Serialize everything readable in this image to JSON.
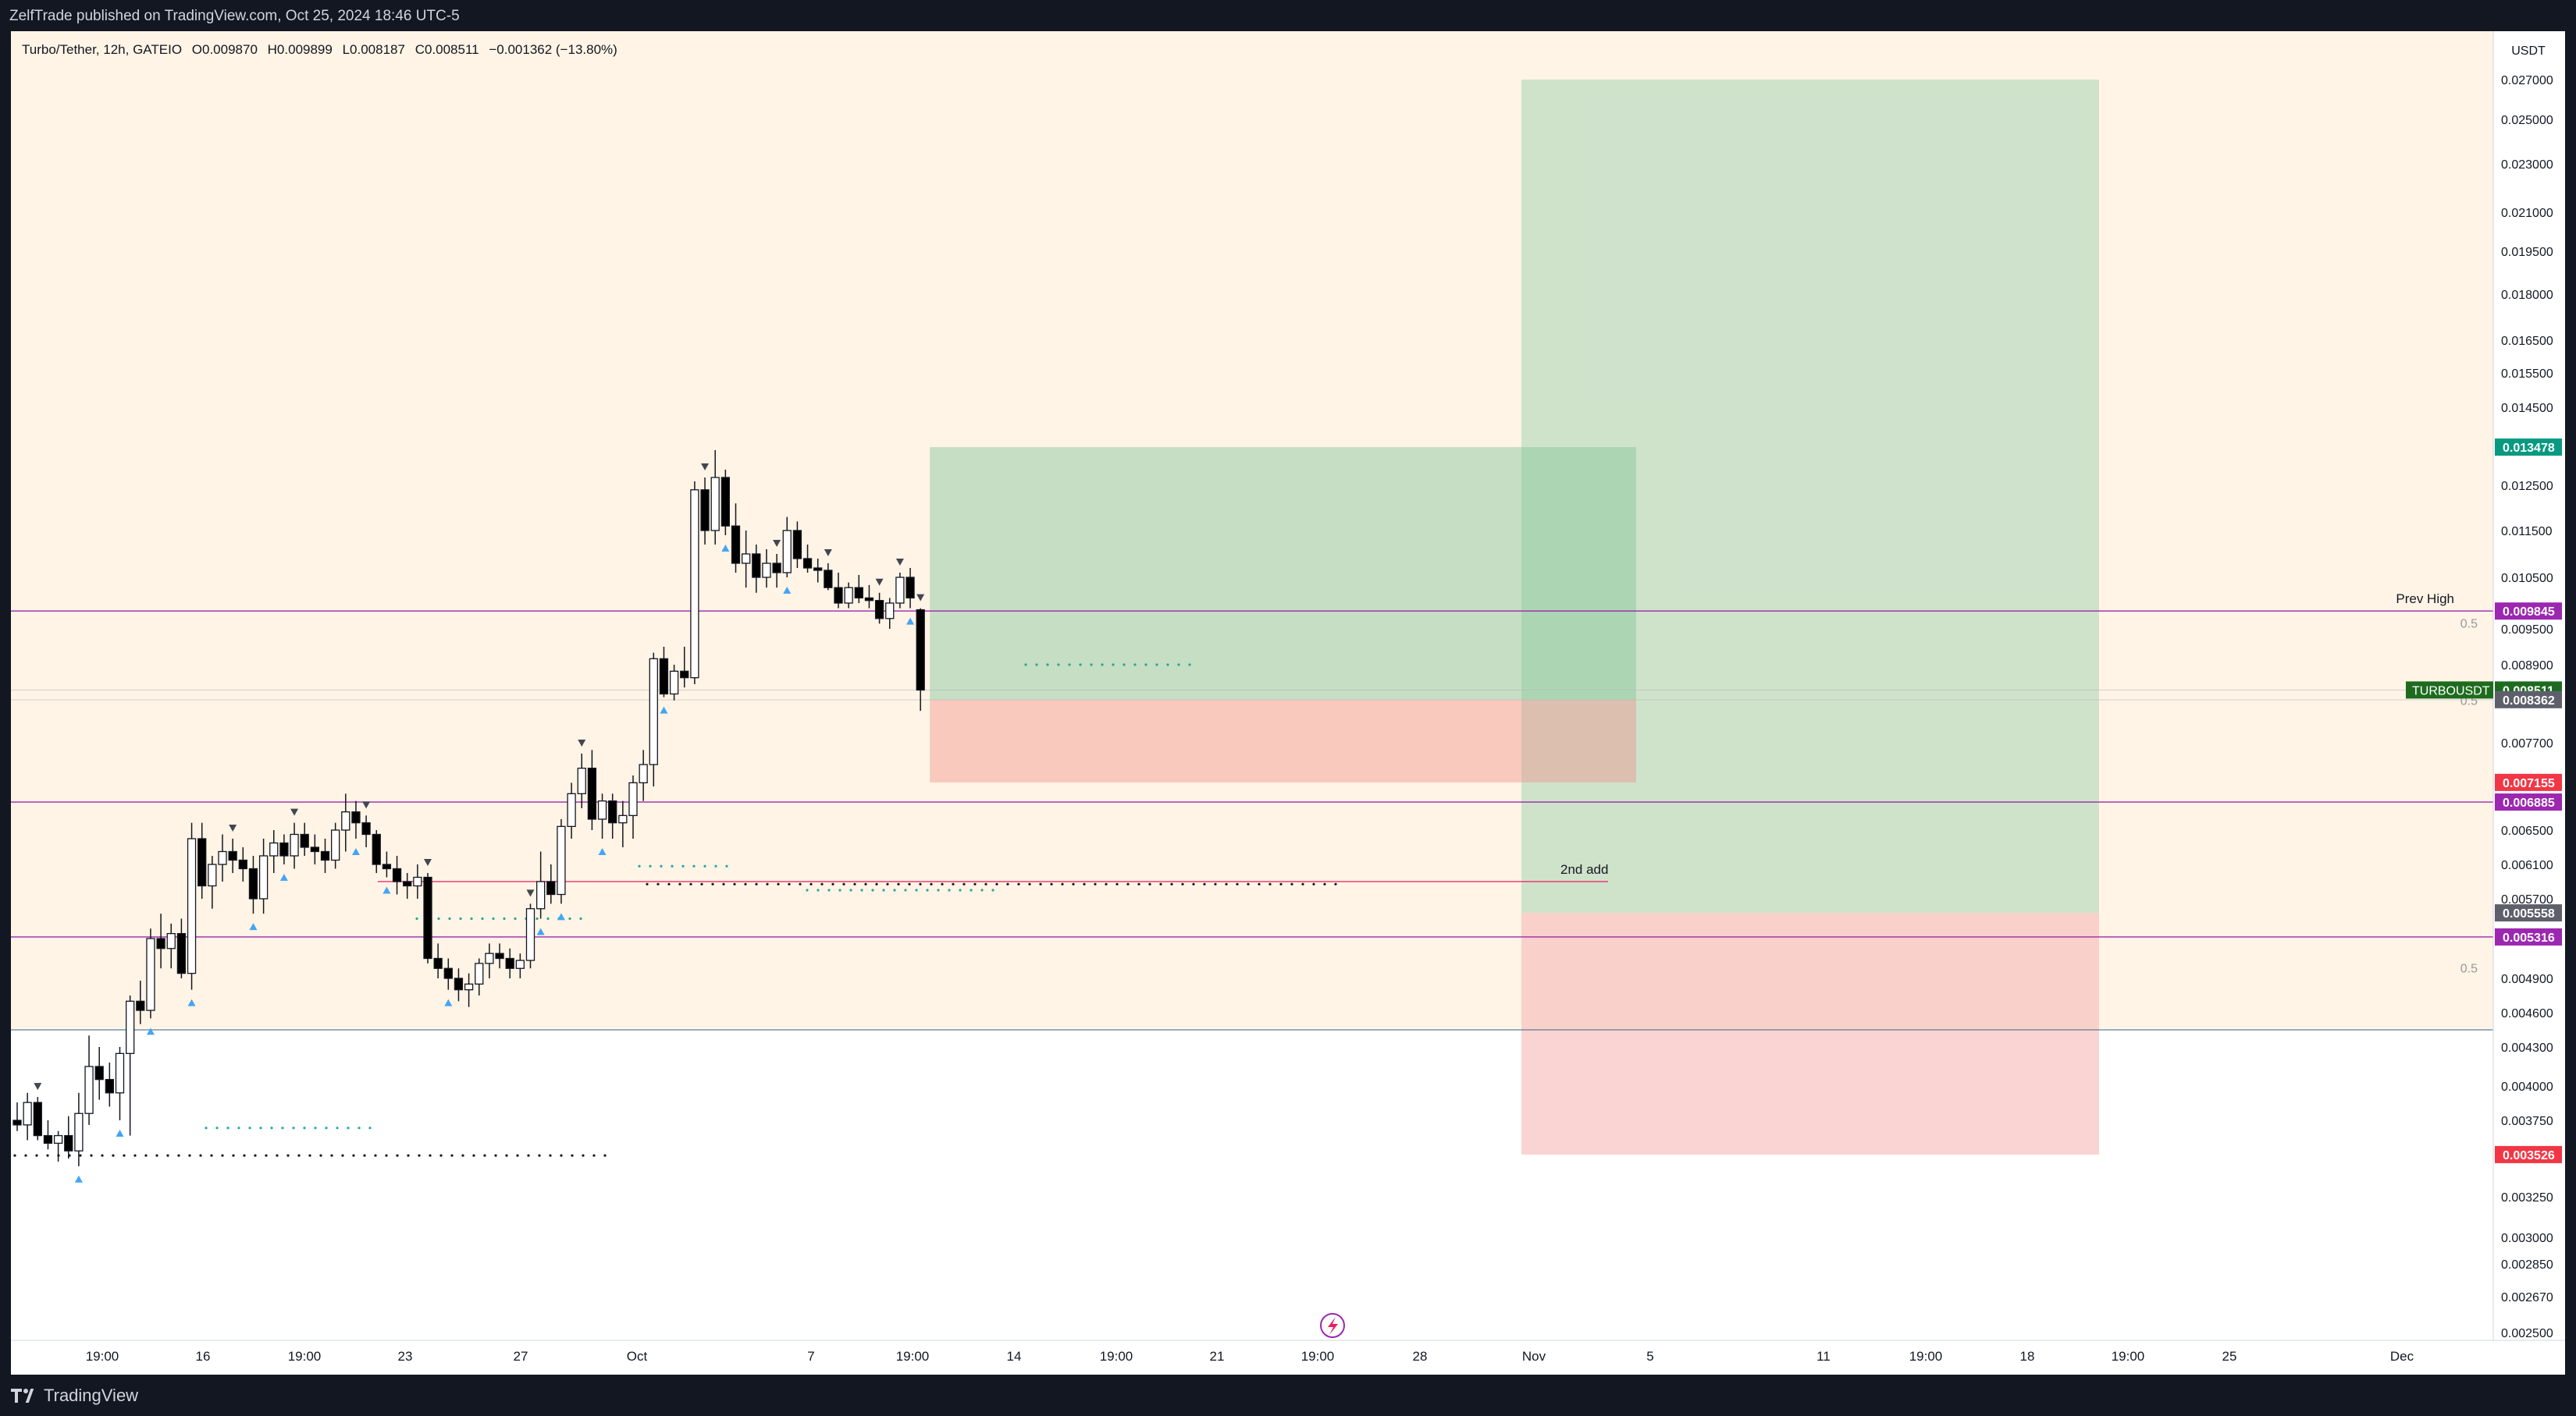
{
  "header": {
    "published": "ZelfTrade published on TradingView.com, Oct 25, 2024 18:46 UTC-5"
  },
  "footer": {
    "brand": "TradingView"
  },
  "legend": {
    "symbol": "Turbo/Tether, 12h, GATEIO",
    "open": "O0.009870",
    "high": "H0.009899",
    "low": "L0.008187",
    "close": "C0.008511",
    "change": "−0.001362 (−13.80%)"
  },
  "colors": {
    "up_candle": "#ffffff",
    "down_candle": "#000000",
    "session_bg": "#fff4e5",
    "long_target": "#b2d8bc",
    "stop_zone": "#f8c2bf",
    "price_tag": "#1e6b1f",
    "level_line": "#9c27b0",
    "signal_up": "#42a5f5"
  },
  "chart_data": {
    "type": "candlestick",
    "timeframe": "12h",
    "currency": "USDT",
    "price_axis_ticks": [
      "0.027000",
      "0.025000",
      "0.023000",
      "0.021000",
      "0.019500",
      "0.018000",
      "0.016500",
      "0.015500",
      "0.014500",
      "0.012500",
      "0.011500",
      "0.010500",
      "0.009500",
      "0.008900",
      "0.007700",
      "0.006500",
      "0.006100",
      "0.005700",
      "0.004900",
      "0.004600",
      "0.004300",
      "0.004000",
      "0.003750",
      "0.003250",
      "0.003000",
      "0.002850",
      "0.002670",
      "0.002500"
    ],
    "time_axis_ticks": [
      "19:00",
      "16",
      "19:00",
      "23",
      "27",
      "Oct",
      "7",
      "19:00",
      "14",
      "19:00",
      "21",
      "19:00",
      "28",
      "Nov",
      "5",
      "11",
      "19:00",
      "18",
      "19:00",
      "25",
      "Dec"
    ],
    "candles": [
      [
        0.00375,
        0.00388,
        0.00368,
        0.00372
      ],
      [
        0.00372,
        0.00395,
        0.00362,
        0.00388
      ],
      [
        0.00388,
        0.00392,
        0.00362,
        0.00365
      ],
      [
        0.00365,
        0.00375,
        0.00356,
        0.0036
      ],
      [
        0.0036,
        0.00368,
        0.00348,
        0.00365
      ],
      [
        0.00365,
        0.00378,
        0.0035,
        0.00355
      ],
      [
        0.00355,
        0.00395,
        0.00345,
        0.0038
      ],
      [
        0.0038,
        0.0044,
        0.00372,
        0.00415
      ],
      [
        0.00415,
        0.0043,
        0.0039,
        0.00405
      ],
      [
        0.00405,
        0.00418,
        0.00385,
        0.00395
      ],
      [
        0.00395,
        0.0043,
        0.00375,
        0.00425
      ],
      [
        0.00425,
        0.00475,
        0.00365,
        0.0047
      ],
      [
        0.0047,
        0.00488,
        0.0045,
        0.00462
      ],
      [
        0.00462,
        0.0054,
        0.00455,
        0.0053
      ],
      [
        0.0053,
        0.00555,
        0.005,
        0.0052
      ],
      [
        0.0052,
        0.00545,
        0.005,
        0.00535
      ],
      [
        0.00535,
        0.0055,
        0.0049,
        0.00495
      ],
      [
        0.00495,
        0.0066,
        0.0048,
        0.0064
      ],
      [
        0.0064,
        0.0066,
        0.0057,
        0.00585
      ],
      [
        0.00585,
        0.0062,
        0.0056,
        0.0061
      ],
      [
        0.0061,
        0.00645,
        0.0059,
        0.00625
      ],
      [
        0.00625,
        0.0064,
        0.006,
        0.00615
      ],
      [
        0.00615,
        0.0063,
        0.0059,
        0.00605
      ],
      [
        0.00605,
        0.0062,
        0.00555,
        0.0057
      ],
      [
        0.0057,
        0.0064,
        0.00555,
        0.0062
      ],
      [
        0.0062,
        0.0065,
        0.006,
        0.00635
      ],
      [
        0.00635,
        0.00645,
        0.0061,
        0.0062
      ],
      [
        0.0062,
        0.0066,
        0.00605,
        0.00645
      ],
      [
        0.00645,
        0.0066,
        0.0062,
        0.0063
      ],
      [
        0.0063,
        0.00645,
        0.0061,
        0.00625
      ],
      [
        0.00625,
        0.0064,
        0.006,
        0.00615
      ],
      [
        0.00615,
        0.0066,
        0.00605,
        0.0065
      ],
      [
        0.0065,
        0.007,
        0.00625,
        0.00675
      ],
      [
        0.00675,
        0.0069,
        0.0064,
        0.0066
      ],
      [
        0.0066,
        0.0067,
        0.0063,
        0.00645
      ],
      [
        0.00645,
        0.0065,
        0.006,
        0.0061
      ],
      [
        0.0061,
        0.00625,
        0.00595,
        0.00605
      ],
      [
        0.00605,
        0.0062,
        0.00575,
        0.0059
      ],
      [
        0.0059,
        0.006,
        0.0057,
        0.00585
      ],
      [
        0.00585,
        0.0061,
        0.0057,
        0.00595
      ],
      [
        0.00595,
        0.006,
        0.00505,
        0.0051
      ],
      [
        0.0051,
        0.00525,
        0.0049,
        0.005
      ],
      [
        0.005,
        0.0051,
        0.0048,
        0.0049
      ],
      [
        0.0049,
        0.005,
        0.0047,
        0.0048
      ],
      [
        0.0048,
        0.00495,
        0.00465,
        0.00485
      ],
      [
        0.00485,
        0.0051,
        0.00475,
        0.00505
      ],
      [
        0.00505,
        0.00525,
        0.0049,
        0.00515
      ],
      [
        0.00515,
        0.00525,
        0.005,
        0.0051
      ],
      [
        0.0051,
        0.0052,
        0.0049,
        0.005
      ],
      [
        0.005,
        0.00515,
        0.0049,
        0.00508
      ],
      [
        0.00508,
        0.00565,
        0.005,
        0.0056
      ],
      [
        0.0056,
        0.00625,
        0.0055,
        0.0059
      ],
      [
        0.0059,
        0.0061,
        0.00565,
        0.00575
      ],
      [
        0.00575,
        0.00665,
        0.00565,
        0.00655
      ],
      [
        0.00655,
        0.00715,
        0.0064,
        0.007
      ],
      [
        0.007,
        0.00755,
        0.0068,
        0.00735
      ],
      [
        0.00735,
        0.0076,
        0.0065,
        0.00665
      ],
      [
        0.00665,
        0.007,
        0.0064,
        0.0069
      ],
      [
        0.0069,
        0.007,
        0.0064,
        0.0066
      ],
      [
        0.0066,
        0.0069,
        0.0063,
        0.0067
      ],
      [
        0.0067,
        0.00725,
        0.0064,
        0.00715
      ],
      [
        0.00715,
        0.0076,
        0.0069,
        0.0074
      ],
      [
        0.0074,
        0.0091,
        0.0071,
        0.009
      ],
      [
        0.009,
        0.0092,
        0.0084,
        0.00845
      ],
      [
        0.00845,
        0.0089,
        0.00835,
        0.0088
      ],
      [
        0.0088,
        0.0092,
        0.00855,
        0.0087
      ],
      [
        0.0087,
        0.0126,
        0.0086,
        0.0124
      ],
      [
        0.0124,
        0.0127,
        0.0112,
        0.0115
      ],
      [
        0.0115,
        0.0134,
        0.0112,
        0.0127
      ],
      [
        0.0127,
        0.0129,
        0.0114,
        0.0116
      ],
      [
        0.0116,
        0.0121,
        0.0106,
        0.0108
      ],
      [
        0.0108,
        0.0115,
        0.0103,
        0.011
      ],
      [
        0.011,
        0.0112,
        0.0102,
        0.0105
      ],
      [
        0.0105,
        0.0111,
        0.0103,
        0.0108
      ],
      [
        0.0108,
        0.011,
        0.0103,
        0.0106
      ],
      [
        0.0106,
        0.0118,
        0.0105,
        0.0115
      ],
      [
        0.0115,
        0.0117,
        0.0107,
        0.0109
      ],
      [
        0.0109,
        0.0112,
        0.0106,
        0.0107
      ],
      [
        0.0107,
        0.0109,
        0.0104,
        0.01065
      ],
      [
        0.01065,
        0.0108,
        0.01025,
        0.0103
      ],
      [
        0.0103,
        0.0106,
        0.0099,
        0.01
      ],
      [
        0.01,
        0.0104,
        0.0099,
        0.0103
      ],
      [
        0.0103,
        0.01055,
        0.01,
        0.0101
      ],
      [
        0.0101,
        0.01035,
        0.0099,
        0.01005
      ],
      [
        0.01005,
        0.0102,
        0.0096,
        0.0097
      ],
      [
        0.0097,
        0.0101,
        0.0095,
        0.01
      ],
      [
        0.01,
        0.0106,
        0.0099,
        0.0105
      ],
      [
        0.0105,
        0.0107,
        0.0099,
        0.0101
      ],
      [
        0.00987,
        0.0099,
        0.00819,
        0.00851
      ]
    ],
    "position_long": {
      "entry": 0.008362,
      "target": 0.013478,
      "stop": 0.007155
    },
    "position_long_2": {
      "entry": 0.005558,
      "target": 0.027,
      "stop": 0.003526
    },
    "levels": [
      {
        "price": 0.009845,
        "label": "Prev High",
        "color": "#9c27b0"
      },
      {
        "price": 0.006885,
        "color": "#9c27b0"
      },
      {
        "price": 0.005316,
        "color": "#9c27b0"
      },
      {
        "price": 0.0059,
        "label": "2nd add",
        "color": "#e91e63"
      },
      {
        "price": 0.00445,
        "color": "#607d8b"
      }
    ],
    "fib_labels": [
      "0.5",
      "0.5",
      "0.5"
    ],
    "price_tags": [
      {
        "label": "",
        "value": "0.013478",
        "color": "#089981"
      },
      {
        "label": "",
        "value": "0.009845",
        "color": "#9c27b0"
      },
      {
        "label": "TURBOUSDT",
        "value": "0.008511",
        "color": "#1e6b1f"
      },
      {
        "label": "",
        "value": "0.008362",
        "color": "#5d606b"
      },
      {
        "label": "",
        "value": "0.007155",
        "color": "#f23645"
      },
      {
        "label": "",
        "value": "0.006885",
        "color": "#9c27b0"
      },
      {
        "label": "",
        "value": "0.005558",
        "color": "#5d606b"
      },
      {
        "label": "",
        "value": "0.005316",
        "color": "#9c27b0"
      },
      {
        "label": "",
        "value": "0.003526",
        "color": "#f23645"
      }
    ]
  }
}
